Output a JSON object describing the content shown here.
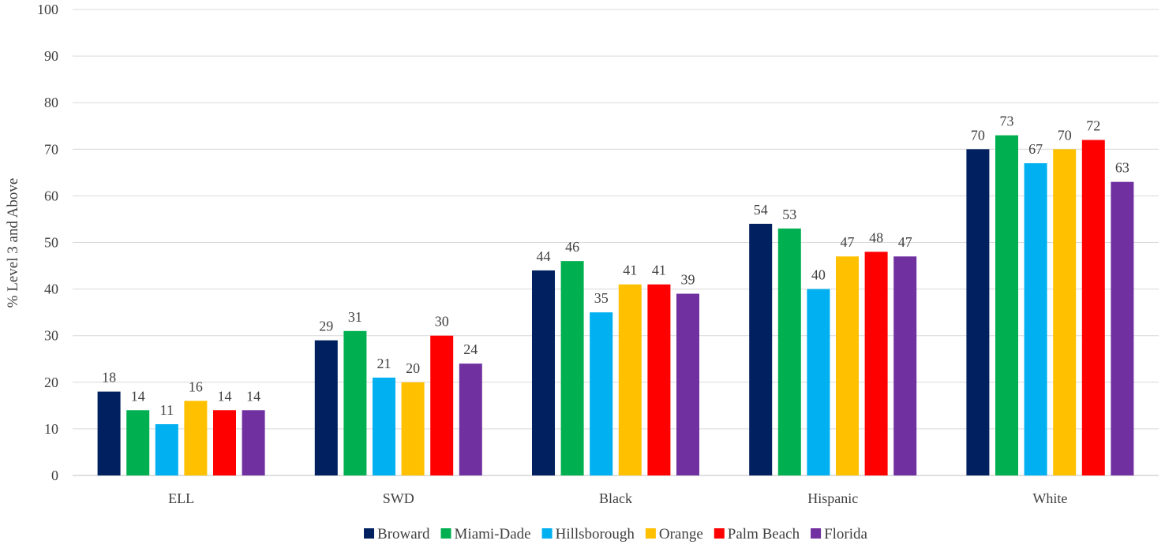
{
  "chart_data": {
    "type": "bar",
    "title": "",
    "xlabel": "",
    "ylabel": "% Level 3 and Above",
    "ylim": [
      0,
      100
    ],
    "yticks": [
      0,
      10,
      20,
      30,
      40,
      50,
      60,
      70,
      80,
      90,
      100
    ],
    "grid": true,
    "legend_position": "bottom",
    "data_labels": true,
    "categories": [
      "ELL",
      "SWD",
      "Black",
      "Hispanic",
      "White"
    ],
    "series": [
      {
        "name": "Broward",
        "color": "#002060",
        "values": [
          18,
          29,
          44,
          54,
          70
        ]
      },
      {
        "name": "Miami-Dade",
        "color": "#00B050",
        "values": [
          14,
          31,
          46,
          53,
          73
        ]
      },
      {
        "name": "Hillsborough",
        "color": "#00B0F0",
        "values": [
          11,
          21,
          35,
          40,
          67
        ]
      },
      {
        "name": "Orange",
        "color": "#FFC000",
        "values": [
          16,
          20,
          41,
          47,
          70
        ]
      },
      {
        "name": "Palm Beach",
        "color": "#FF0000",
        "values": [
          14,
          30,
          41,
          48,
          72
        ]
      },
      {
        "name": "Florida",
        "color": "#7030A0",
        "values": [
          14,
          24,
          39,
          47,
          63
        ]
      }
    ]
  }
}
